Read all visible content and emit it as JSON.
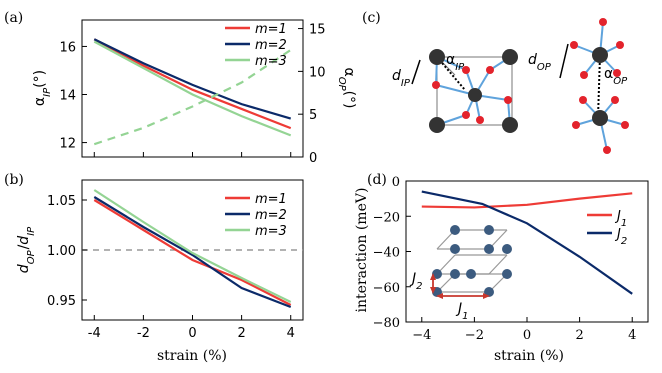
{
  "chart_data": [
    {
      "panel": "(a)",
      "type": "line",
      "x": [
        -4,
        -2,
        0,
        2,
        4
      ],
      "ylim": [
        11.4,
        17.1
      ],
      "yticks": [
        "12",
        "14",
        "16"
      ],
      "ylim_right": [
        0,
        16
      ],
      "yticks_right": [
        "0",
        "5",
        "10",
        "15"
      ],
      "xticks": [
        "-4",
        "-2",
        "0",
        "2",
        "4"
      ],
      "ylabel_base": "α",
      "ylabel_sub": "IP",
      "ylabel_unit": "(°)",
      "ylabel_right_base": "α",
      "ylabel_right_sub": "OP",
      "ylabel_right_unit": "(°)",
      "series": [
        {
          "name": "m=1",
          "color": "#ee3b36",
          "values": [
            16.3,
            15.2,
            14.2,
            13.4,
            12.6
          ]
        },
        {
          "name": "m=2",
          "color": "#0b2a69",
          "values": [
            16.3,
            15.3,
            14.4,
            13.6,
            13.0
          ]
        },
        {
          "name": "m=3",
          "color": "#94d494",
          "values": [
            16.2,
            15.1,
            14.0,
            13.1,
            12.3
          ]
        },
        {
          "name": "",
          "color": "#94d494",
          "dashed": true,
          "axis": "right",
          "values": [
            1.5,
            3.4,
            5.9,
            8.7,
            12.5
          ]
        }
      ],
      "legend": "top-right"
    },
    {
      "panel": "(b)",
      "type": "line",
      "x": [
        -4,
        -2,
        0,
        2,
        4
      ],
      "ylim": [
        0.93,
        1.07
      ],
      "yticks": [
        "0.95",
        "1.00",
        "1.05"
      ],
      "xticks": [
        "-4",
        "-2",
        "0",
        "2",
        "4"
      ],
      "xlabel": "strain (%)",
      "ylabel_num": "d",
      "ylabel_num_sub": "OP",
      "ylabel_den": "d",
      "ylabel_den_sub": "IP",
      "reference_line": 1.0,
      "series": [
        {
          "name": "m=1",
          "color": "#ee3b36",
          "values": [
            1.05,
            1.02,
            0.99,
            0.97,
            0.945
          ]
        },
        {
          "name": "m=2",
          "color": "#0b2a69",
          "values": [
            1.053,
            1.023,
            0.995,
            0.962,
            0.943
          ]
        },
        {
          "name": "m=3",
          "color": "#94d494",
          "values": [
            1.06,
            1.028,
            0.997,
            0.972,
            0.948
          ]
        }
      ],
      "legend": "top-right"
    },
    {
      "panel": "(d)",
      "type": "line",
      "x": [
        -4,
        -2,
        -1.7,
        0,
        2,
        4
      ],
      "ylim": [
        -80,
        0
      ],
      "yticks": [
        "0",
        "−20",
        "−40",
        "−60",
        "−80"
      ],
      "xticks": [
        "−4",
        "−2",
        "0",
        "2",
        "4"
      ],
      "xlabel": "strain (%)",
      "ylabel": "interaction (meV)",
      "series": [
        {
          "name": "J1",
          "label_base": "J",
          "label_sub": "1",
          "color": "#ee3b36",
          "x": [
            -4,
            -2,
            0,
            2,
            4
          ],
          "values": [
            -14.5,
            -15,
            -13.5,
            -10,
            -7
          ]
        },
        {
          "name": "J2",
          "label_base": "J",
          "label_sub": "2",
          "color": "#0b2a69",
          "x": [
            -4,
            -1.7,
            0,
            2,
            4
          ],
          "values": [
            -6,
            -13,
            -24,
            -43,
            -64
          ]
        }
      ],
      "legend": "right",
      "inset_labels": {
        "j1": "J",
        "j1_sub": "1",
        "j2": "J",
        "j2_sub": "2"
      }
    }
  ],
  "panel_c": {
    "label": "(c)",
    "dIP": "d",
    "dIP_sub": "IP",
    "alphaIP": "α",
    "alphaIP_sub": "IP",
    "dOP": "d",
    "dOP_sub": "OP",
    "alphaOP": "α",
    "alphaOP_sub": "OP"
  }
}
